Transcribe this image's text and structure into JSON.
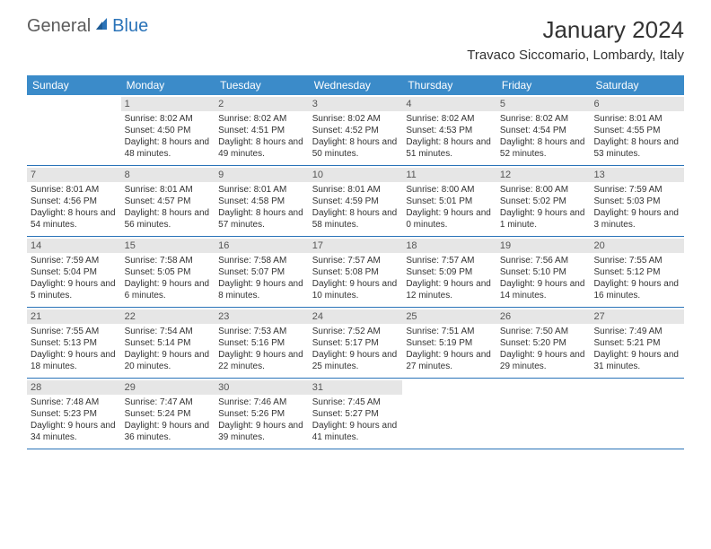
{
  "logo": {
    "general": "General",
    "blue": "Blue"
  },
  "title": "January 2024",
  "location": "Travaco Siccomario, Lombardy, Italy",
  "colors": {
    "header_bg": "#3b8bc9",
    "header_text": "#ffffff",
    "row_border": "#2a73b8",
    "daynum_bg": "#e6e6e6",
    "body_text": "#333333",
    "logo_gray": "#5c5c5c",
    "logo_blue": "#2a73b8"
  },
  "weekdays": [
    "Sunday",
    "Monday",
    "Tuesday",
    "Wednesday",
    "Thursday",
    "Friday",
    "Saturday"
  ],
  "weeks": [
    [
      {
        "n": "",
        "sr": "",
        "ss": "",
        "dl": ""
      },
      {
        "n": "1",
        "sr": "Sunrise: 8:02 AM",
        "ss": "Sunset: 4:50 PM",
        "dl": "Daylight: 8 hours and 48 minutes."
      },
      {
        "n": "2",
        "sr": "Sunrise: 8:02 AM",
        "ss": "Sunset: 4:51 PM",
        "dl": "Daylight: 8 hours and 49 minutes."
      },
      {
        "n": "3",
        "sr": "Sunrise: 8:02 AM",
        "ss": "Sunset: 4:52 PM",
        "dl": "Daylight: 8 hours and 50 minutes."
      },
      {
        "n": "4",
        "sr": "Sunrise: 8:02 AM",
        "ss": "Sunset: 4:53 PM",
        "dl": "Daylight: 8 hours and 51 minutes."
      },
      {
        "n": "5",
        "sr": "Sunrise: 8:02 AM",
        "ss": "Sunset: 4:54 PM",
        "dl": "Daylight: 8 hours and 52 minutes."
      },
      {
        "n": "6",
        "sr": "Sunrise: 8:01 AM",
        "ss": "Sunset: 4:55 PM",
        "dl": "Daylight: 8 hours and 53 minutes."
      }
    ],
    [
      {
        "n": "7",
        "sr": "Sunrise: 8:01 AM",
        "ss": "Sunset: 4:56 PM",
        "dl": "Daylight: 8 hours and 54 minutes."
      },
      {
        "n": "8",
        "sr": "Sunrise: 8:01 AM",
        "ss": "Sunset: 4:57 PM",
        "dl": "Daylight: 8 hours and 56 minutes."
      },
      {
        "n": "9",
        "sr": "Sunrise: 8:01 AM",
        "ss": "Sunset: 4:58 PM",
        "dl": "Daylight: 8 hours and 57 minutes."
      },
      {
        "n": "10",
        "sr": "Sunrise: 8:01 AM",
        "ss": "Sunset: 4:59 PM",
        "dl": "Daylight: 8 hours and 58 minutes."
      },
      {
        "n": "11",
        "sr": "Sunrise: 8:00 AM",
        "ss": "Sunset: 5:01 PM",
        "dl": "Daylight: 9 hours and 0 minutes."
      },
      {
        "n": "12",
        "sr": "Sunrise: 8:00 AM",
        "ss": "Sunset: 5:02 PM",
        "dl": "Daylight: 9 hours and 1 minute."
      },
      {
        "n": "13",
        "sr": "Sunrise: 7:59 AM",
        "ss": "Sunset: 5:03 PM",
        "dl": "Daylight: 9 hours and 3 minutes."
      }
    ],
    [
      {
        "n": "14",
        "sr": "Sunrise: 7:59 AM",
        "ss": "Sunset: 5:04 PM",
        "dl": "Daylight: 9 hours and 5 minutes."
      },
      {
        "n": "15",
        "sr": "Sunrise: 7:58 AM",
        "ss": "Sunset: 5:05 PM",
        "dl": "Daylight: 9 hours and 6 minutes."
      },
      {
        "n": "16",
        "sr": "Sunrise: 7:58 AM",
        "ss": "Sunset: 5:07 PM",
        "dl": "Daylight: 9 hours and 8 minutes."
      },
      {
        "n": "17",
        "sr": "Sunrise: 7:57 AM",
        "ss": "Sunset: 5:08 PM",
        "dl": "Daylight: 9 hours and 10 minutes."
      },
      {
        "n": "18",
        "sr": "Sunrise: 7:57 AM",
        "ss": "Sunset: 5:09 PM",
        "dl": "Daylight: 9 hours and 12 minutes."
      },
      {
        "n": "19",
        "sr": "Sunrise: 7:56 AM",
        "ss": "Sunset: 5:10 PM",
        "dl": "Daylight: 9 hours and 14 minutes."
      },
      {
        "n": "20",
        "sr": "Sunrise: 7:55 AM",
        "ss": "Sunset: 5:12 PM",
        "dl": "Daylight: 9 hours and 16 minutes."
      }
    ],
    [
      {
        "n": "21",
        "sr": "Sunrise: 7:55 AM",
        "ss": "Sunset: 5:13 PM",
        "dl": "Daylight: 9 hours and 18 minutes."
      },
      {
        "n": "22",
        "sr": "Sunrise: 7:54 AM",
        "ss": "Sunset: 5:14 PM",
        "dl": "Daylight: 9 hours and 20 minutes."
      },
      {
        "n": "23",
        "sr": "Sunrise: 7:53 AM",
        "ss": "Sunset: 5:16 PM",
        "dl": "Daylight: 9 hours and 22 minutes."
      },
      {
        "n": "24",
        "sr": "Sunrise: 7:52 AM",
        "ss": "Sunset: 5:17 PM",
        "dl": "Daylight: 9 hours and 25 minutes."
      },
      {
        "n": "25",
        "sr": "Sunrise: 7:51 AM",
        "ss": "Sunset: 5:19 PM",
        "dl": "Daylight: 9 hours and 27 minutes."
      },
      {
        "n": "26",
        "sr": "Sunrise: 7:50 AM",
        "ss": "Sunset: 5:20 PM",
        "dl": "Daylight: 9 hours and 29 minutes."
      },
      {
        "n": "27",
        "sr": "Sunrise: 7:49 AM",
        "ss": "Sunset: 5:21 PM",
        "dl": "Daylight: 9 hours and 31 minutes."
      }
    ],
    [
      {
        "n": "28",
        "sr": "Sunrise: 7:48 AM",
        "ss": "Sunset: 5:23 PM",
        "dl": "Daylight: 9 hours and 34 minutes."
      },
      {
        "n": "29",
        "sr": "Sunrise: 7:47 AM",
        "ss": "Sunset: 5:24 PM",
        "dl": "Daylight: 9 hours and 36 minutes."
      },
      {
        "n": "30",
        "sr": "Sunrise: 7:46 AM",
        "ss": "Sunset: 5:26 PM",
        "dl": "Daylight: 9 hours and 39 minutes."
      },
      {
        "n": "31",
        "sr": "Sunrise: 7:45 AM",
        "ss": "Sunset: 5:27 PM",
        "dl": "Daylight: 9 hours and 41 minutes."
      },
      {
        "n": "",
        "sr": "",
        "ss": "",
        "dl": ""
      },
      {
        "n": "",
        "sr": "",
        "ss": "",
        "dl": ""
      },
      {
        "n": "",
        "sr": "",
        "ss": "",
        "dl": ""
      }
    ]
  ]
}
